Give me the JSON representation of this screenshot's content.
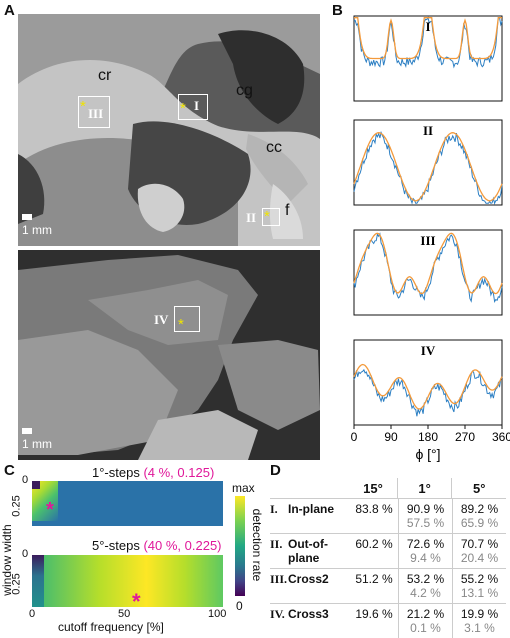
{
  "panels": {
    "A": "A",
    "B": "B",
    "C": "C",
    "D": "D"
  },
  "panel_a": {
    "region_labels": {
      "cr": "cr",
      "cg": "cg",
      "cc": "cc",
      "f": "f"
    },
    "roi_labels": [
      "III",
      "I",
      "II",
      "IV"
    ],
    "scale_label": "1 mm",
    "scale_label_2": "1 mm"
  },
  "panel_b": {
    "roman": [
      "I",
      "II",
      "III",
      "IV"
    ],
    "x_ticks": [
      "0",
      "90",
      "180",
      "270",
      "360"
    ],
    "xlabel": "ϕ [°]",
    "colors": {
      "measured": "#2c7fc3",
      "fit": "#f39a3c",
      "peak": "#e0413a"
    }
  },
  "panel_c": {
    "title1_prefix": "1°-steps ",
    "title1_params": "(4 %, 0.125)",
    "title2_prefix": "5°-steps ",
    "title2_params": "(40 %, 0.225)",
    "ylabel": "window width",
    "xlabel": "cutoff frequency [%]",
    "y_ticks_top": [
      "0",
      "0.25"
    ],
    "y_ticks_bottom": [
      "0",
      "0.25"
    ],
    "x_ticks": [
      "0",
      "50",
      "100"
    ],
    "colorbar_max": "max",
    "colorbar_min": "0",
    "colorbar_label": "detection rate",
    "param_color": "#e0189a"
  },
  "panel_d": {
    "headers": [
      "15°",
      "1°",
      "5°"
    ],
    "rows": [
      {
        "num": "I.",
        "name": "In-plane",
        "v15": "83.8 %",
        "v1": "90.9 %",
        "v1b": "57.5 %",
        "v5": "89.2 %",
        "v5b": "65.9 %"
      },
      {
        "num": "II.",
        "name": "Out-of-",
        "name2": "plane",
        "v15": "60.2 %",
        "v1": "72.6 %",
        "v1b": "9.4 %",
        "v5": "70.7 %",
        "v5b": "20.4 %"
      },
      {
        "num": "III.",
        "name": "Cross2",
        "v15": "51.2 %",
        "v1": "53.2 %",
        "v1b": "4.2 %",
        "v5": "55.2 %",
        "v5b": "13.1 %"
      },
      {
        "num": "IV.",
        "name": "Cross3",
        "v15": "19.6 %",
        "v1": "21.2 %",
        "v1b": "0.1 %",
        "v5": "19.9 %",
        "v5b": "3.1 %"
      }
    ]
  }
}
